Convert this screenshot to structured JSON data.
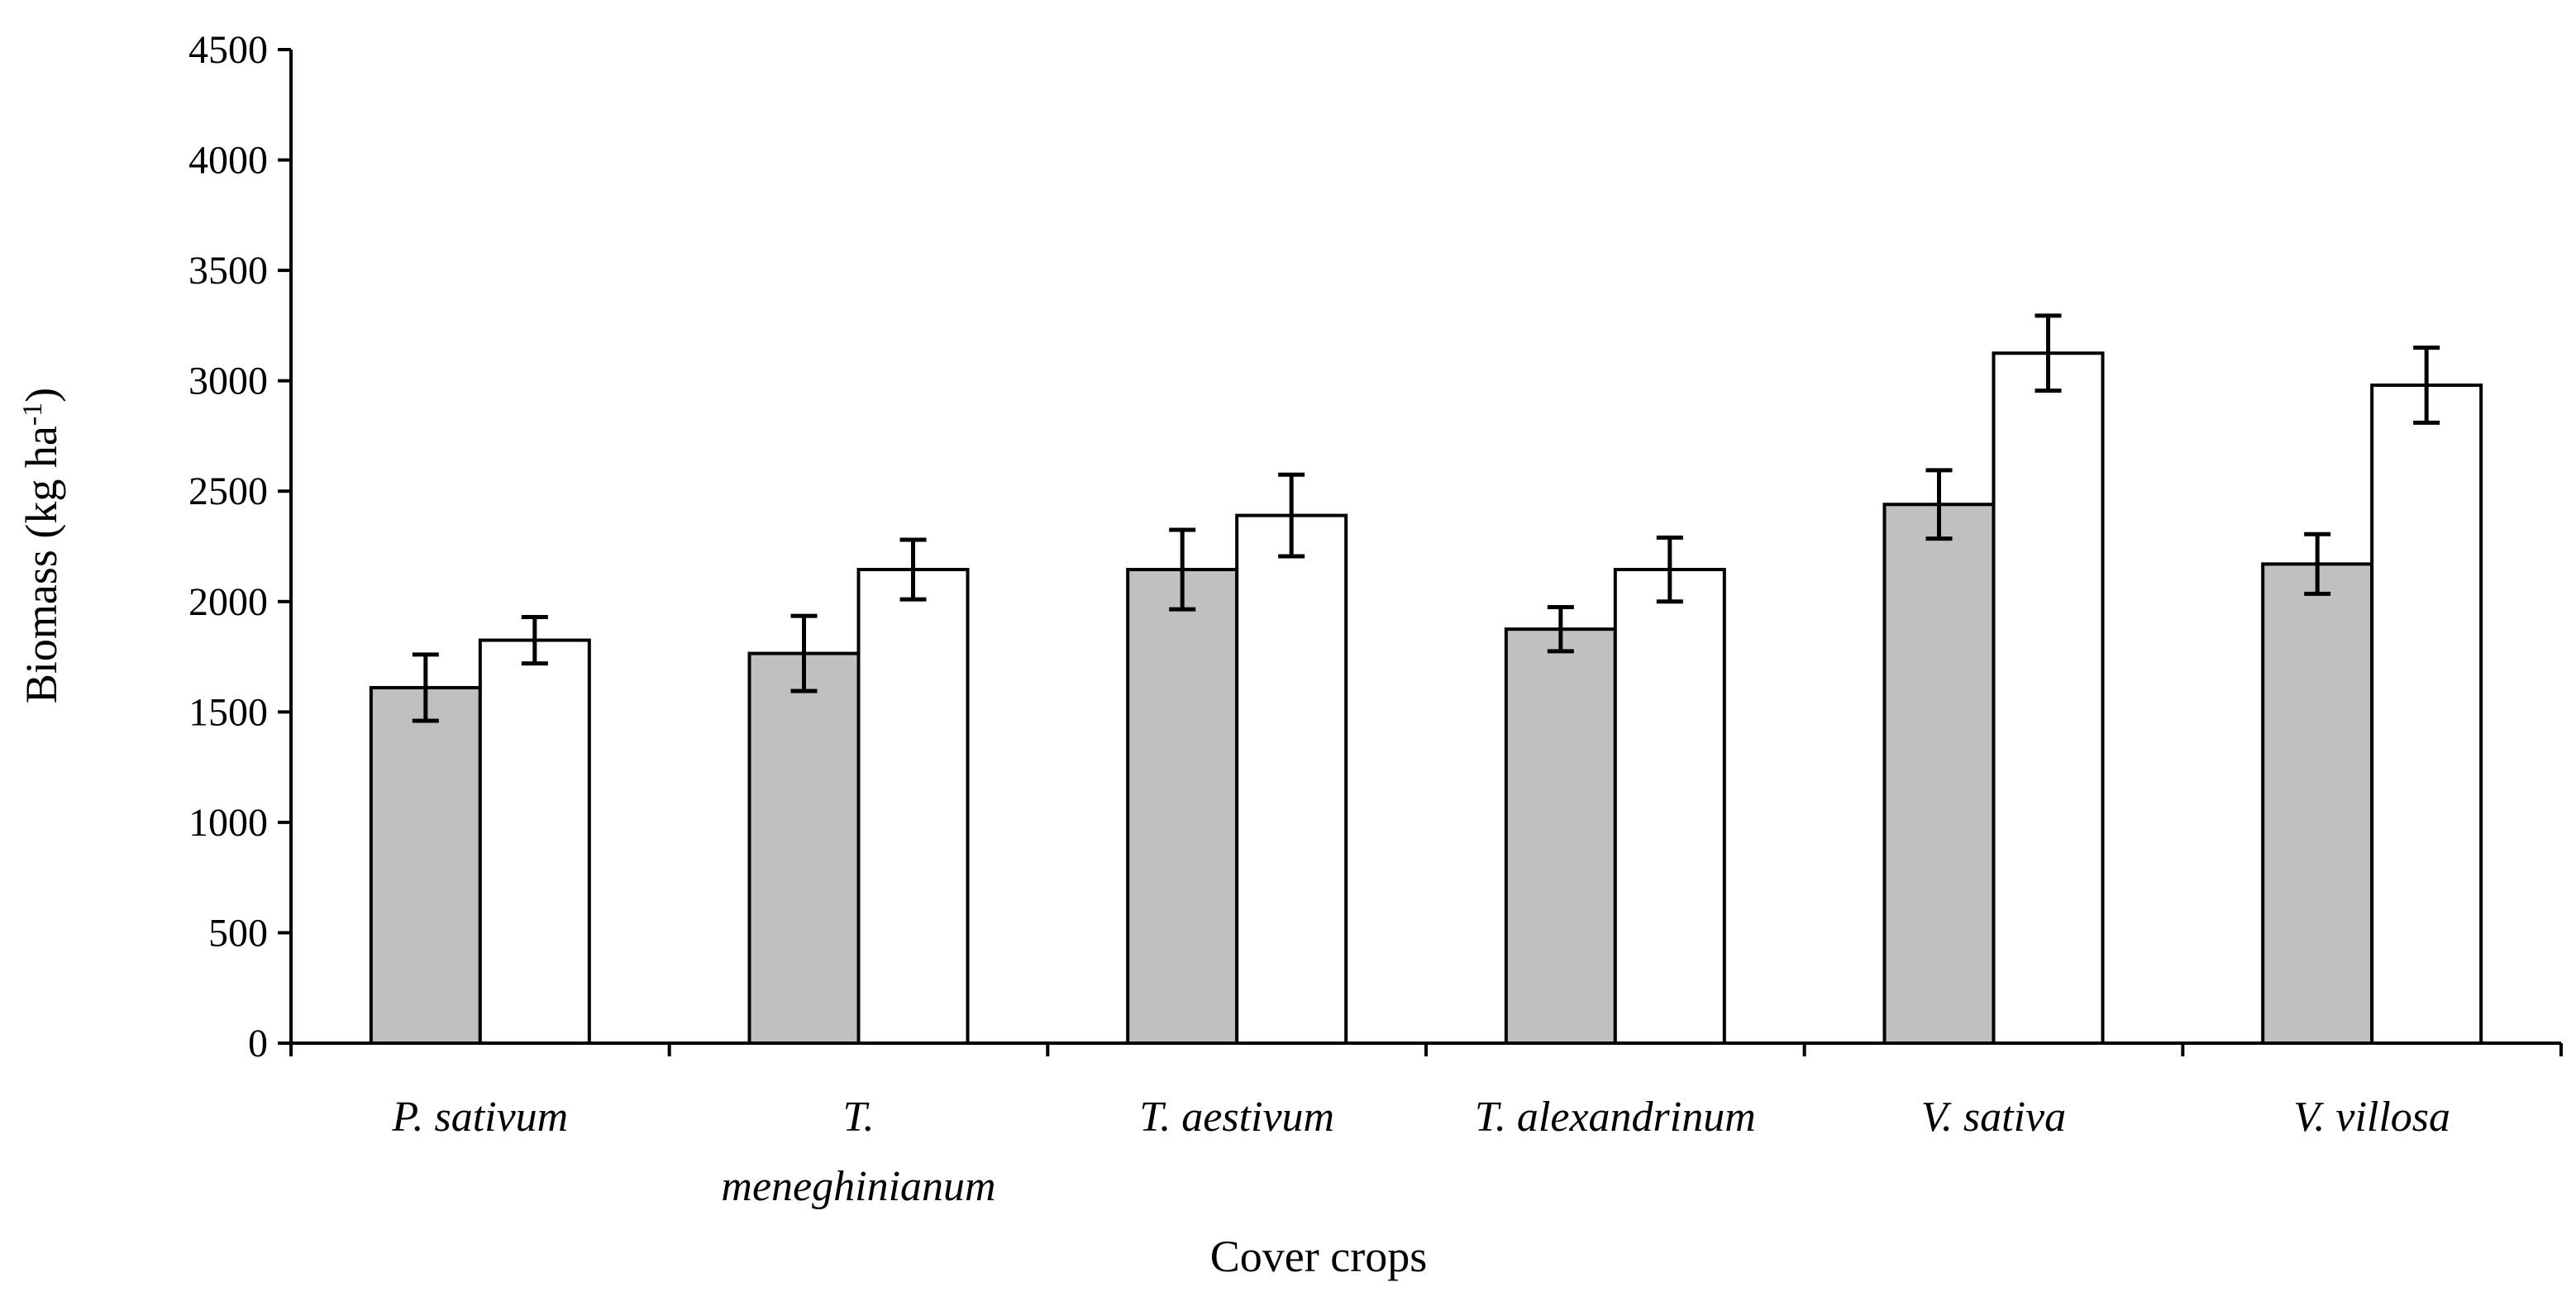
{
  "chart_data": {
    "type": "bar",
    "title": "",
    "xlabel": "Cover crops",
    "ylabel": "Biomass (kg ha",
    "ylabel_superscript": "-1",
    "ylabel_suffix": ")",
    "ylim": [
      0,
      4500
    ],
    "yticks": [
      0,
      500,
      1000,
      1500,
      2000,
      2500,
      3000,
      3500,
      4000,
      4500
    ],
    "grid": false,
    "categories": [
      [
        "P. sativum"
      ],
      [
        "T.",
        "meneghinianum"
      ],
      [
        "T. aestivum"
      ],
      [
        "T. alexandrinum"
      ],
      [
        "V. sativa"
      ],
      [
        "V. villosa"
      ]
    ],
    "series": [
      {
        "name": "series-1",
        "color": "#c0c0c0",
        "values": [
          1610,
          1765,
          2145,
          1875,
          2440,
          2170
        ],
        "errors": [
          150,
          170,
          180,
          100,
          155,
          135
        ]
      },
      {
        "name": "series-2",
        "color": "#ffffff",
        "values": [
          1825,
          2145,
          2390,
          2145,
          3125,
          2980
        ],
        "errors": [
          105,
          135,
          185,
          145,
          170,
          170
        ]
      }
    ]
  }
}
